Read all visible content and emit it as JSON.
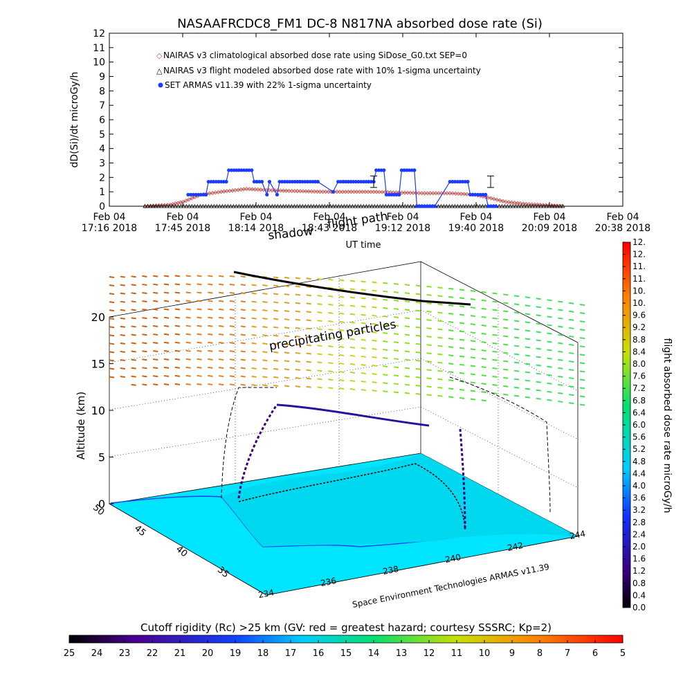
{
  "title": "NASAAFRCDC8_FM1 DC-8   N817NA absorbed dose rate (Si)",
  "colors": {
    "nairas_clim": "#c0504d",
    "nairas_flight": "#000000",
    "armas": "#1a3cff",
    "ocean": "#00e5ff",
    "axis": "#000000"
  },
  "chart_data": [
    {
      "type": "line",
      "ylabel": "dD(Si)/dt microGy/h",
      "xlabel": "UT time",
      "ylim": [
        0,
        12
      ],
      "yticks": [
        "0",
        "1",
        "2",
        "3",
        "4",
        "5",
        "6",
        "7",
        "8",
        "9",
        "10",
        "11",
        "12"
      ],
      "xticks": [
        {
          "top": "Feb 04",
          "bottom": "17:16 2018"
        },
        {
          "top": "Feb 04",
          "bottom": "17:45 2018"
        },
        {
          "top": "Feb 04",
          "bottom": "18:14 2018"
        },
        {
          "top": "Feb 04",
          "bottom": "18:43 2018"
        },
        {
          "top": "Feb 04",
          "bottom": "19:12 2018"
        },
        {
          "top": "Feb 04",
          "bottom": "19:40 2018"
        },
        {
          "top": "Feb 04",
          "bottom": "20:09 2018"
        },
        {
          "top": "Feb 04",
          "bottom": "20:38 2018"
        }
      ],
      "xlim": [
        "17:16",
        "20:38"
      ],
      "legend_position": "top-left",
      "series": [
        {
          "name": "NAIRAS v3 climatological absorbed dose rate using SiDose_G0.txt SEP=0",
          "marker": "diamond",
          "x": [
            "17:30",
            "17:40",
            "17:45",
            "17:52",
            "18:00",
            "18:10",
            "18:20",
            "18:30",
            "18:40",
            "18:50",
            "19:00",
            "19:10",
            "19:20",
            "19:30",
            "19:40",
            "19:45",
            "19:52",
            "20:00",
            "20:10",
            "20:15"
          ],
          "values": [
            0.0,
            0.1,
            0.3,
            0.8,
            1.0,
            1.2,
            1.1,
            1.05,
            1.0,
            1.0,
            1.0,
            0.95,
            0.9,
            0.9,
            0.8,
            0.6,
            0.3,
            0.15,
            0.05,
            0.0
          ]
        },
        {
          "name": "NAIRAS v3 flight modeled absorbed dose rate with 10% 1-sigma uncertainty",
          "marker": "triangle",
          "x": [
            "17:30",
            "20:15"
          ],
          "values": [
            0.0,
            0.0
          ]
        },
        {
          "name": "SET ARMAS v11.39 with 22% 1-sigma uncertainty",
          "marker": "circle",
          "x": [
            "17:47",
            "17:54",
            "17:55",
            "18:02",
            "18:03",
            "18:12",
            "18:13",
            "18:14",
            "18:16",
            "18:18",
            "18:19",
            "18:22",
            "18:23",
            "18:30",
            "18:31",
            "18:37",
            "18:38",
            "18:44",
            "18:46",
            "18:48",
            "18:50",
            "18:58",
            "19:00",
            "19:01",
            "19:04",
            "19:05",
            "19:10",
            "19:11",
            "19:16",
            "19:17",
            "19:23",
            "19:24",
            "19:30",
            "19:31",
            "19:37",
            "19:38",
            "19:44",
            "19:45",
            "19:48"
          ],
          "values": [
            0.8,
            0.8,
            1.7,
            1.7,
            2.5,
            2.5,
            1.7,
            1.7,
            1.7,
            0.8,
            1.7,
            0.8,
            1.7,
            1.7,
            1.7,
            1.7,
            1.7,
            1.0,
            1.7,
            1.7,
            1.7,
            1.7,
            1.7,
            2.5,
            2.5,
            0.8,
            0.8,
            2.5,
            2.5,
            0.0,
            0.0,
            0.0,
            1.7,
            1.7,
            1.7,
            0.8,
            0.8,
            0.0,
            0.0
          ]
        }
      ],
      "error_bars": [
        {
          "x": "19:00",
          "value": 1.7,
          "err": 0.4
        },
        {
          "x": "19:46",
          "value": 1.7,
          "err": 0.4
        }
      ]
    },
    {
      "type": "heatmap",
      "annotations": [
        "shadow",
        "flight path",
        "precipitating particles"
      ],
      "zlabel": "Altitude (km)",
      "zticks": [
        "0",
        "5",
        "10",
        "15",
        "20"
      ],
      "latticks": [
        "35",
        "40",
        "45",
        "50"
      ],
      "lonticks": [
        "234",
        "236",
        "238",
        "240",
        "242",
        "244"
      ],
      "footnote": "Space Environment Technologies ARMAS v11.39",
      "colorbar_right": {
        "label": "flight absorbed dose rate microGy/h",
        "ticks": [
          "0.0",
          "0.4",
          "0.8",
          "1.2",
          "1.6",
          "2.0",
          "2.4",
          "2.8",
          "3.2",
          "3.6",
          "4.0",
          "4.4",
          "4.8",
          "5.2",
          "5.6",
          "6.0",
          "6.4",
          "6.8",
          "7.2",
          "7.6",
          "8.0",
          "8.4",
          "8.8",
          "9.2",
          "9.6",
          "10.",
          "10.",
          "11.",
          "11.",
          "12.",
          "12."
        ]
      },
      "colorbar_bottom": {
        "label": "Cutoff rigidity (Rc) >25 km (GV: red = greatest hazard; courtesy SSSRC; Kp=2)",
        "ticks": [
          "25",
          "24",
          "23",
          "22",
          "21",
          "20",
          "19",
          "18",
          "17",
          "16",
          "15",
          "14",
          "13",
          "12",
          "11",
          "10",
          "9",
          "8",
          "7",
          "6",
          "5"
        ]
      }
    }
  ]
}
